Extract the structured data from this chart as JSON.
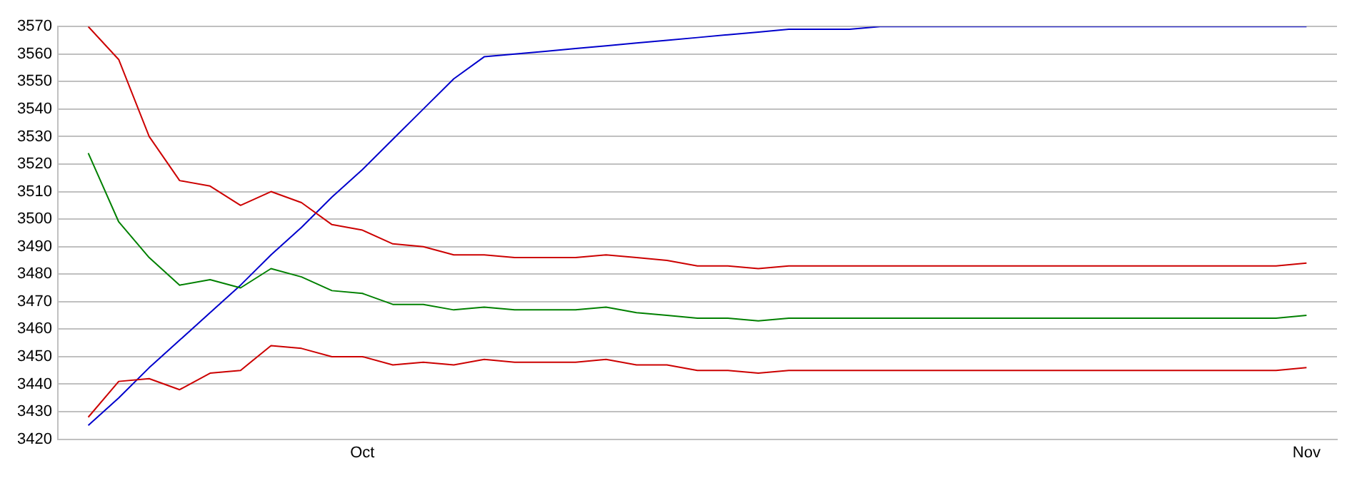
{
  "chart_data": {
    "type": "line",
    "x": [
      "--09-22",
      "--09-23",
      "--09-24",
      "--09-25",
      "--09-26",
      "--09-27",
      "--09-28",
      "--09-29",
      "--09-30",
      "--10-01",
      "--10-02",
      "--10-03",
      "--10-04",
      "--10-05",
      "--10-06",
      "--10-07",
      "--10-08",
      "--10-09",
      "--10-10",
      "--10-11",
      "--10-12",
      "--10-13",
      "--10-14",
      "--10-15",
      "--10-16",
      "--10-17",
      "--10-18",
      "--10-19",
      "--10-20",
      "--10-21",
      "--10-22",
      "--10-23",
      "--10-24",
      "--10-25",
      "--10-26",
      "--10-27",
      "--10-28",
      "--10-29",
      "--10-30",
      "--10-31",
      "--11-01"
    ],
    "series": [
      {
        "color": "#cc0000",
        "values": [
          3570,
          3558,
          3530,
          3514,
          3512,
          3505,
          3510,
          3506,
          3498,
          3496,
          3491,
          3490,
          3487,
          3487,
          3486,
          3486,
          3486,
          3487,
          3486,
          3485,
          3483,
          3483,
          3482,
          3483,
          3483,
          3483,
          3483,
          3483,
          3483,
          3483,
          3483,
          3483,
          3483,
          3483,
          3483,
          3483,
          3483,
          3483,
          3483,
          3483,
          3484
        ]
      },
      {
        "color": "#008000",
        "values": [
          3524,
          3499,
          3486,
          3476,
          3478,
          3475,
          3482,
          3479,
          3474,
          3473,
          3469,
          3469,
          3467,
          3468,
          3467,
          3467,
          3467,
          3468,
          3466,
          3465,
          3464,
          3464,
          3463,
          3464,
          3464,
          3464,
          3464,
          3464,
          3464,
          3464,
          3464,
          3464,
          3464,
          3464,
          3464,
          3464,
          3464,
          3464,
          3464,
          3464,
          3465
        ]
      },
      {
        "color": "#cc0000",
        "values": [
          3428,
          3441,
          3442,
          3438,
          3444,
          3445,
          3454,
          3453,
          3450,
          3450,
          3447,
          3448,
          3447,
          3449,
          3448,
          3448,
          3448,
          3449,
          3447,
          3447,
          3445,
          3445,
          3444,
          3445,
          3445,
          3445,
          3445,
          3445,
          3445,
          3445,
          3445,
          3445,
          3445,
          3445,
          3445,
          3445,
          3445,
          3445,
          3445,
          3445,
          3446
        ]
      },
      {
        "color": "#0000cc",
        "values": [
          3425,
          3435,
          3446,
          3456,
          3466,
          3476,
          3487,
          3497,
          3508,
          3518,
          3529,
          3540,
          3551,
          3559,
          3560,
          3561,
          3562,
          3563,
          3564,
          3565,
          3566,
          3567,
          3568,
          3569,
          3569,
          3569,
          3570,
          3570,
          3570,
          3570,
          3570,
          3570,
          3570,
          3570,
          3570,
          3570,
          3570,
          3570,
          3570,
          3570,
          3570
        ]
      }
    ],
    "xlim": [
      "--09-21",
      "--11-02"
    ],
    "xticks": [
      {
        "value": "--10-01",
        "label": "Oct"
      },
      {
        "value": "--11-01",
        "label": "Nov"
      }
    ],
    "ylim": [
      3420,
      3570
    ],
    "yticks": [
      3420,
      3430,
      3440,
      3450,
      3460,
      3470,
      3480,
      3490,
      3500,
      3510,
      3520,
      3530,
      3540,
      3550,
      3560,
      3570
    ],
    "grid": "y",
    "legend": false,
    "marker": "none",
    "line_style": "solid"
  }
}
